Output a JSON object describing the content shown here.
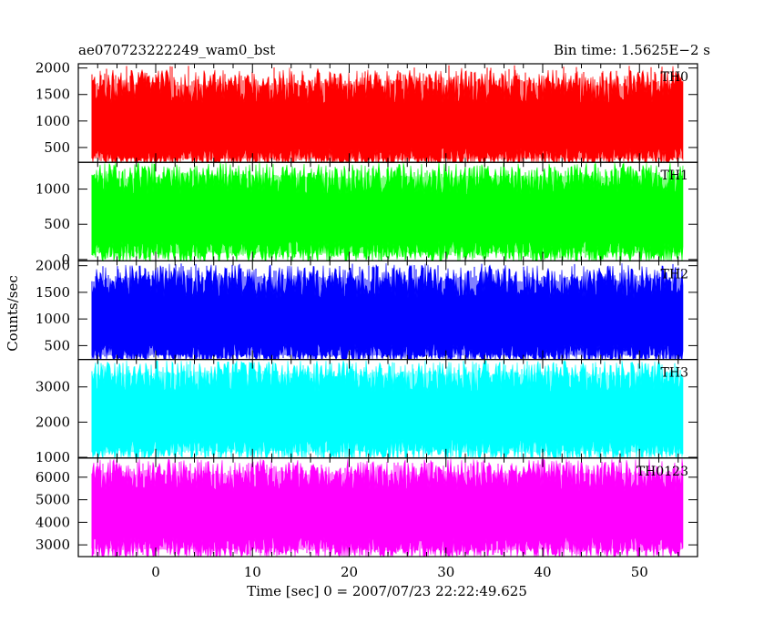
{
  "title_left": "ae070723222249_wam0_bst",
  "title_right": "Bin time: 1.5625E−2 s",
  "xlabel": "Time [sec] 0 = 2007/07/23 22:22:49.625",
  "ylabel": "Counts/sec",
  "chart_data": {
    "type": "line",
    "subtype": "stacked light-curve panels",
    "title": "ae070723222249_wam0_bst",
    "bin_time_text": "Bin time: 1.5625E−2 s",
    "xlabel": "Time [sec] 0 = 2007/07/23 22:22:49.625",
    "ylabel": "Counts/sec",
    "xlim": [
      -8,
      56
    ],
    "xticks": [
      0,
      10,
      20,
      30,
      40,
      50
    ],
    "panels": [
      {
        "name": "TH0",
        "color": "#ff0000",
        "ylim": [
          220,
          2080
        ],
        "yticks": [
          500,
          1000,
          1500,
          2000
        ],
        "mean": 950,
        "typical_low": 300,
        "typical_high": 1650,
        "extreme_low": 240,
        "extreme_high": 2050
      },
      {
        "name": "TH1",
        "color": "#00ff00",
        "ylim": [
          -20,
          1380
        ],
        "yticks": [
          0,
          500,
          1000
        ],
        "mean": 640,
        "typical_low": 110,
        "typical_high": 1150,
        "extreme_low": 20,
        "extreme_high": 1300
      },
      {
        "name": "TH2",
        "color": "#0000ff",
        "ylim": [
          240,
          2090
        ],
        "yticks": [
          500,
          1000,
          1500,
          2000
        ],
        "mean": 1000,
        "typical_low": 330,
        "typical_high": 1700,
        "extreme_low": 260,
        "extreme_high": 2050
      },
      {
        "name": "TH3",
        "color": "#00ffff",
        "ylim": [
          980,
          3780
        ],
        "yticks": [
          1000,
          2000,
          3000
        ],
        "mean": 2300,
        "typical_low": 1200,
        "typical_high": 3300,
        "extreme_low": 1010,
        "extreme_high": 3750
      },
      {
        "name": "TH0123",
        "color": "#ff00ff",
        "ylim": [
          2480,
          6850
        ],
        "yticks": [
          3000,
          4000,
          5000,
          6000
        ],
        "mean": 4500,
        "typical_low": 2850,
        "typical_high": 6100,
        "extreme_low": 2500,
        "extreme_high": 6700
      }
    ]
  }
}
